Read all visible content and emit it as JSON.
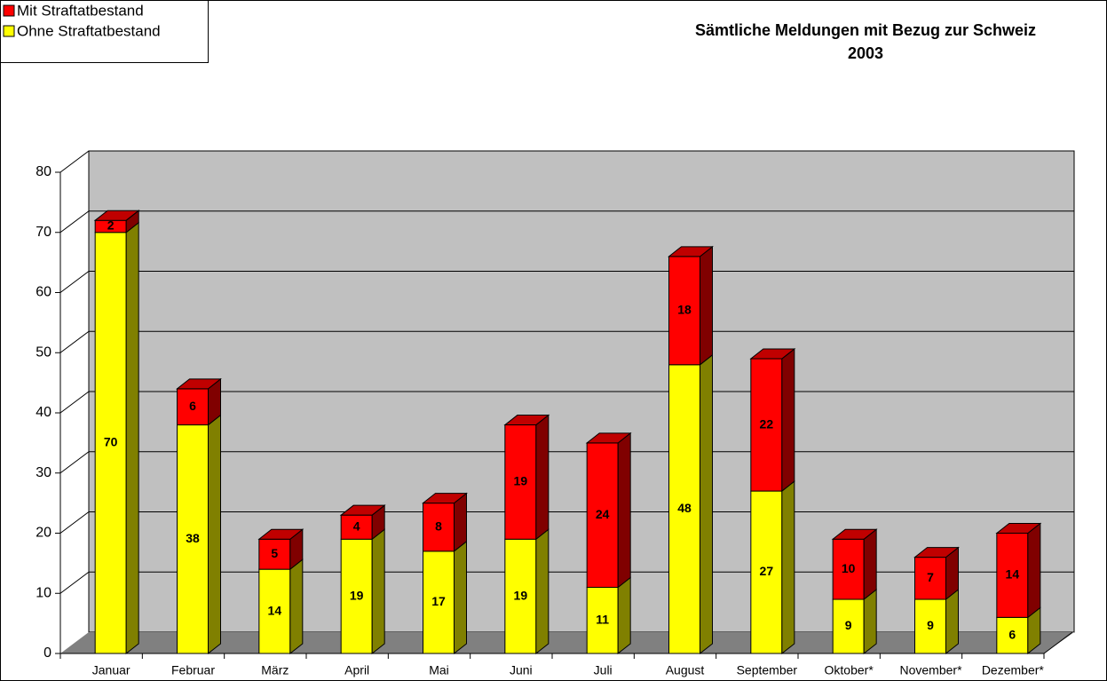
{
  "chart_data": {
    "type": "bar",
    "stacked": true,
    "title": "Sämtliche Meldungen mit Bezug zur Schweiz",
    "subtitle": "2003",
    "categories": [
      "Januar",
      "Februar",
      "März",
      "April",
      "Mai",
      "Juni",
      "Juli",
      "August",
      "September",
      "Oktober*",
      "November*",
      "Dezember*"
    ],
    "series": [
      {
        "name": "Ohne Straftatbestand",
        "color": "#ffff00",
        "values": [
          70,
          38,
          14,
          19,
          17,
          19,
          11,
          48,
          27,
          9,
          9,
          6
        ]
      },
      {
        "name": "Mit Straftatbestand",
        "color": "#ff0000",
        "values": [
          2,
          6,
          5,
          4,
          8,
          19,
          24,
          18,
          22,
          10,
          7,
          14
        ]
      }
    ],
    "ylim": [
      0,
      80
    ],
    "yticks": [
      0,
      10,
      20,
      30,
      40,
      50,
      60,
      70,
      80
    ],
    "grid": true,
    "legend": "top-left"
  }
}
